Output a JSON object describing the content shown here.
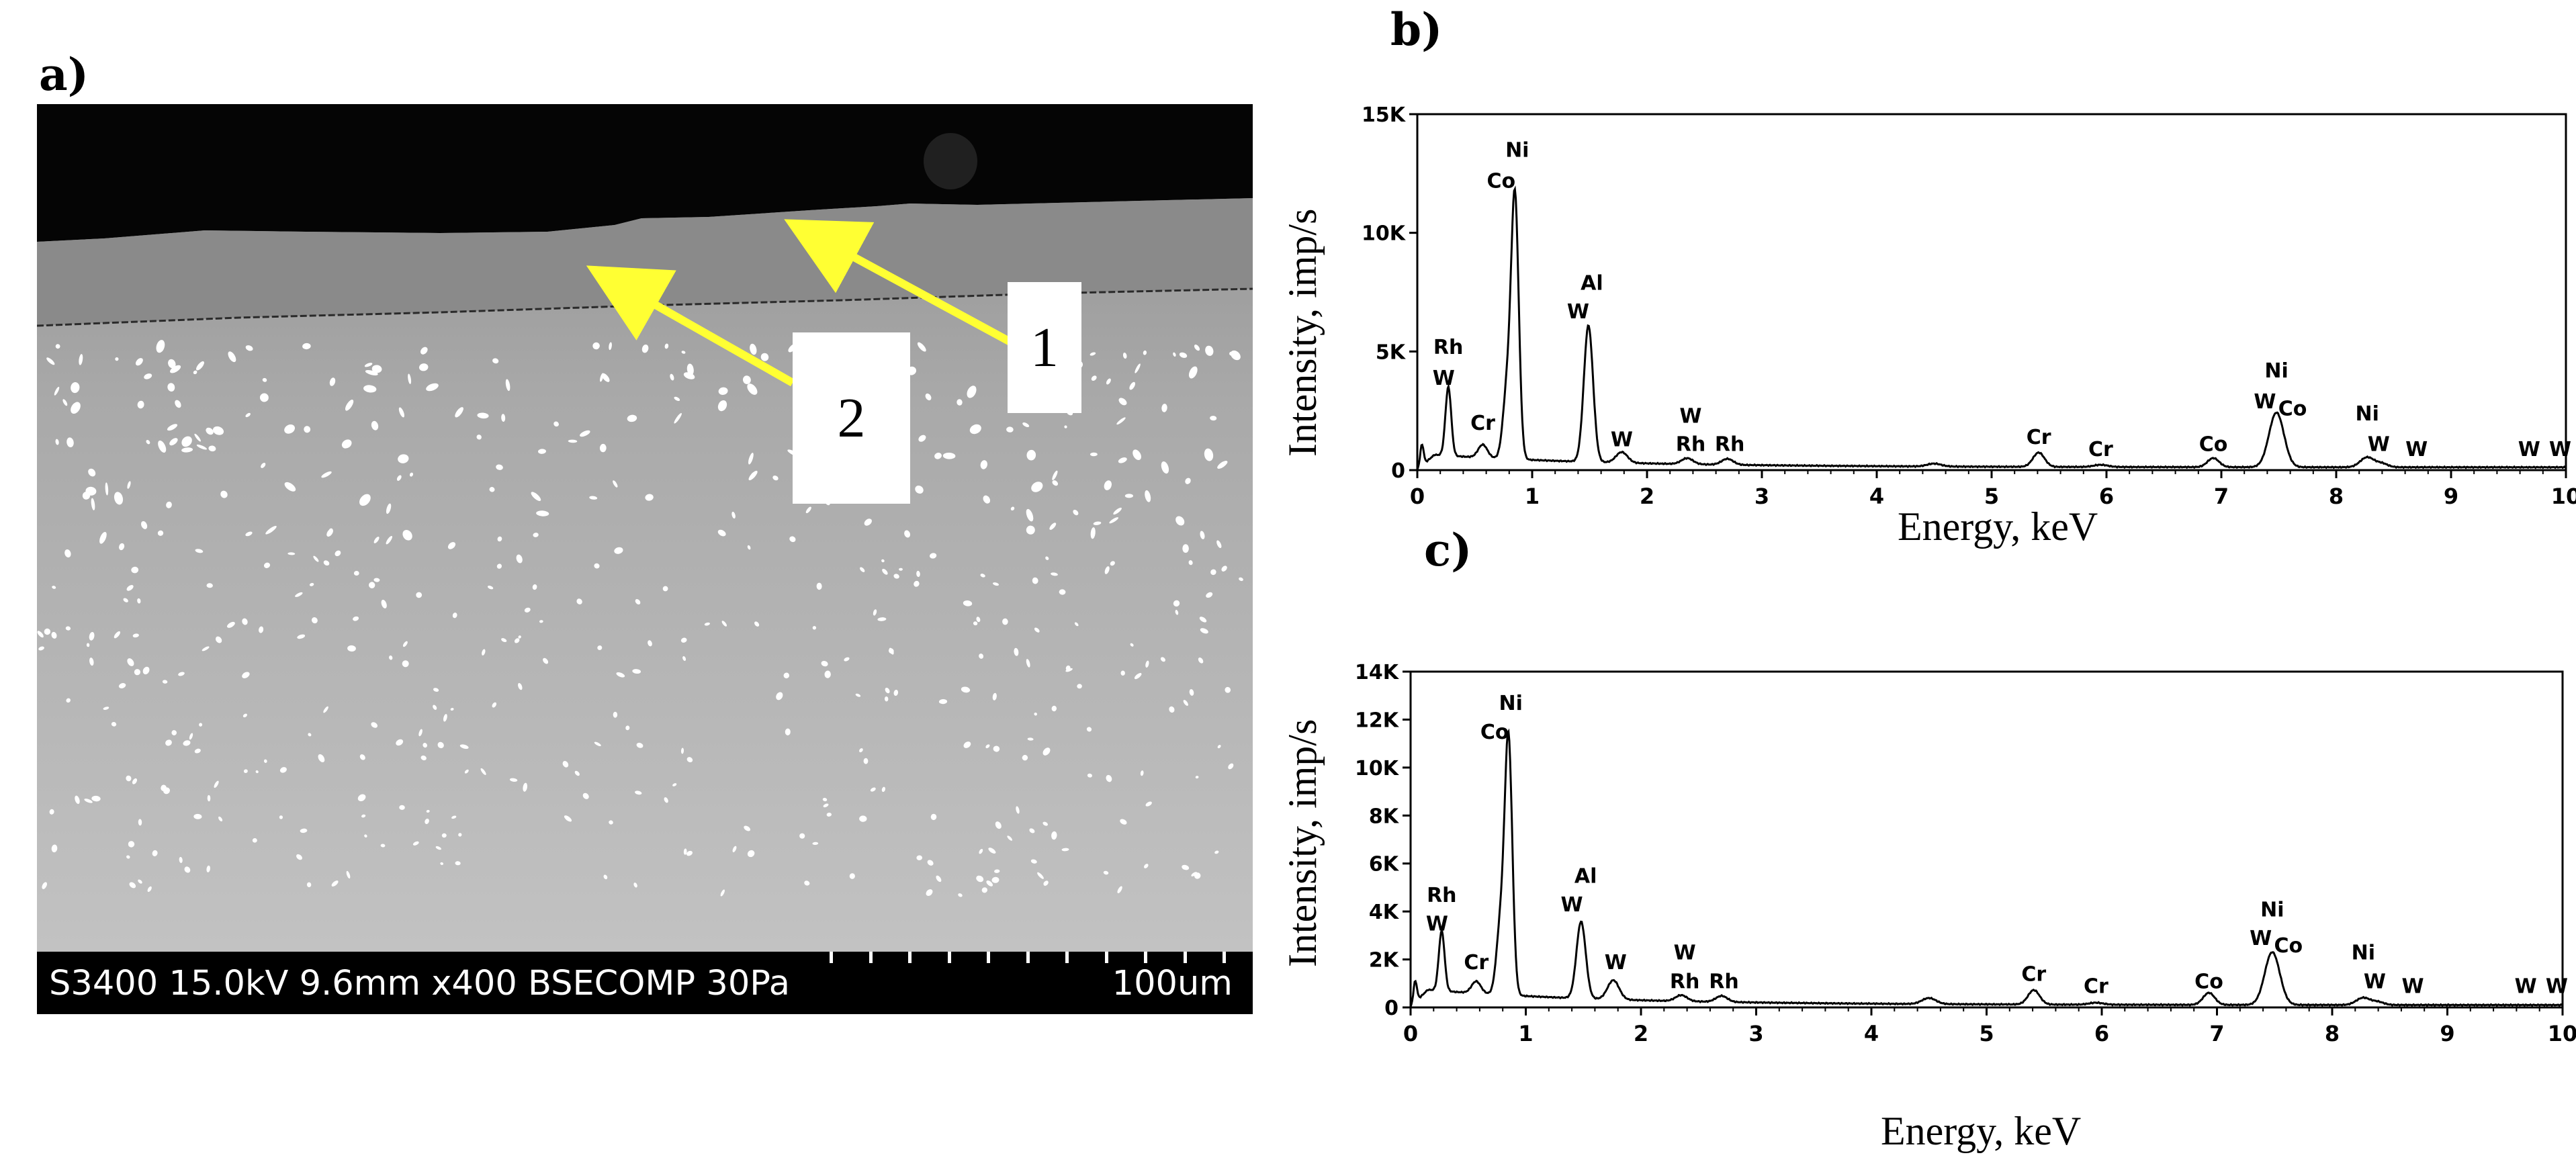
{
  "panel_labels": {
    "a": "a)",
    "b": "b)",
    "c": "c)"
  },
  "micrograph": {
    "caption": "S3400 15.0kV 9.6mm x400 BSECOMP 30Pa",
    "scale_bar_label": "100um",
    "markers": [
      "1",
      "2"
    ],
    "arrow_color": "#ffff33"
  },
  "chart_data": [
    {
      "type": "line",
      "xlabel": "Energy, keV",
      "ylabel": "Intensity, imp/s",
      "xlim": [
        0,
        10
      ],
      "ylim": [
        0,
        15000
      ],
      "xticks": [
        "0",
        "1",
        "2",
        "3",
        "4",
        "5",
        "6",
        "7",
        "8",
        "9",
        "10"
      ],
      "yticks": [
        {
          "value": 0,
          "label": "0"
        },
        {
          "value": 5000,
          "label": "5K"
        },
        {
          "value": 10000,
          "label": "10K"
        },
        {
          "value": 15000,
          "label": "15K"
        }
      ],
      "peaks": [
        {
          "x": 0.04,
          "y": 900,
          "w": 0.015
        },
        {
          "x": 0.27,
          "y": 2900,
          "w": 0.025
        },
        {
          "x": 0.57,
          "y": 550,
          "w": 0.04
        },
        {
          "x": 0.78,
          "y": 2800,
          "w": 0.035
        },
        {
          "x": 0.85,
          "y": 11000,
          "w": 0.033
        },
        {
          "x": 1.49,
          "y": 5750,
          "w": 0.04
        },
        {
          "x": 1.78,
          "y": 450,
          "w": 0.05
        },
        {
          "x": 2.35,
          "y": 250,
          "w": 0.05
        },
        {
          "x": 2.7,
          "y": 250,
          "w": 0.05
        },
        {
          "x": 4.5,
          "y": 120,
          "w": 0.06
        },
        {
          "x": 5.41,
          "y": 600,
          "w": 0.05
        },
        {
          "x": 5.95,
          "y": 90,
          "w": 0.06
        },
        {
          "x": 6.93,
          "y": 380,
          "w": 0.05
        },
        {
          "x": 7.48,
          "y": 2300,
          "w": 0.065
        },
        {
          "x": 8.27,
          "y": 420,
          "w": 0.06
        },
        {
          "x": 8.4,
          "y": 150,
          "w": 0.05
        }
      ],
      "background": {
        "start": 700,
        "end": 120
      },
      "annotations": [
        {
          "text": "Rh",
          "x": 0.27,
          "y": 4900
        },
        {
          "text": "W",
          "x": 0.23,
          "y": 3600
        },
        {
          "text": "Cr",
          "x": 0.57,
          "y": 1700
        },
        {
          "text": "Ni",
          "x": 0.87,
          "y": 13200
        },
        {
          "text": "Co",
          "x": 0.73,
          "y": 11900
        },
        {
          "text": "Al",
          "x": 1.52,
          "y": 7600
        },
        {
          "text": "W",
          "x": 1.4,
          "y": 6400
        },
        {
          "text": "W",
          "x": 1.78,
          "y": 1000
        },
        {
          "text": "W",
          "x": 2.38,
          "y": 2000
        },
        {
          "text": "Rh",
          "x": 2.38,
          "y": 800
        },
        {
          "text": "Rh",
          "x": 2.72,
          "y": 800
        },
        {
          "text": "Cr",
          "x": 5.41,
          "y": 1100
        },
        {
          "text": "Cr",
          "x": 5.95,
          "y": 600
        },
        {
          "text": "Co",
          "x": 6.93,
          "y": 800
        },
        {
          "text": "Ni",
          "x": 7.48,
          "y": 3900
        },
        {
          "text": "W",
          "x": 7.38,
          "y": 2600
        },
        {
          "text": "Co",
          "x": 7.62,
          "y": 2300
        },
        {
          "text": "Ni",
          "x": 8.27,
          "y": 2100
        },
        {
          "text": "W",
          "x": 8.37,
          "y": 800
        },
        {
          "text": "W",
          "x": 8.7,
          "y": 600
        },
        {
          "text": "W",
          "x": 9.68,
          "y": 600
        },
        {
          "text": "W",
          "x": 9.95,
          "y": 600
        }
      ]
    },
    {
      "type": "line",
      "xlabel": "Energy, keV",
      "ylabel": "Intensity, imp/s",
      "xlim": [
        0,
        10
      ],
      "ylim": [
        0,
        14000
      ],
      "xticks": [
        "0",
        "1",
        "2",
        "3",
        "4",
        "5",
        "6",
        "7",
        "8",
        "9",
        "10"
      ],
      "yticks": [
        {
          "value": 0,
          "label": "0"
        },
        {
          "value": 2000,
          "label": "2K"
        },
        {
          "value": 4000,
          "label": "4K"
        },
        {
          "value": 6000,
          "label": "6K"
        },
        {
          "value": 8000,
          "label": "8K"
        },
        {
          "value": 10000,
          "label": "10K"
        },
        {
          "value": 12000,
          "label": "12K"
        },
        {
          "value": 14000,
          "label": "14K"
        }
      ],
      "peaks": [
        {
          "x": 0.04,
          "y": 900,
          "w": 0.015
        },
        {
          "x": 0.27,
          "y": 2500,
          "w": 0.025
        },
        {
          "x": 0.57,
          "y": 500,
          "w": 0.04
        },
        {
          "x": 0.78,
          "y": 2800,
          "w": 0.035
        },
        {
          "x": 0.85,
          "y": 10600,
          "w": 0.033
        },
        {
          "x": 1.48,
          "y": 3200,
          "w": 0.04
        },
        {
          "x": 1.76,
          "y": 800,
          "w": 0.05
        },
        {
          "x": 2.35,
          "y": 250,
          "w": 0.05
        },
        {
          "x": 2.7,
          "y": 250,
          "w": 0.05
        },
        {
          "x": 4.5,
          "y": 250,
          "w": 0.06
        },
        {
          "x": 5.41,
          "y": 600,
          "w": 0.05
        },
        {
          "x": 5.95,
          "y": 80,
          "w": 0.06
        },
        {
          "x": 6.93,
          "y": 500,
          "w": 0.05
        },
        {
          "x": 7.48,
          "y": 2200,
          "w": 0.065
        },
        {
          "x": 8.27,
          "y": 300,
          "w": 0.06
        },
        {
          "x": 8.4,
          "y": 120,
          "w": 0.05
        }
      ],
      "background": {
        "start": 800,
        "end": 100
      },
      "annotations": [
        {
          "text": "Rh",
          "x": 0.27,
          "y": 4400
        },
        {
          "text": "W",
          "x": 0.23,
          "y": 3200
        },
        {
          "text": "Cr",
          "x": 0.57,
          "y": 1600
        },
        {
          "text": "Ni",
          "x": 0.87,
          "y": 12400
        },
        {
          "text": "Co",
          "x": 0.73,
          "y": 11200
        },
        {
          "text": "Al",
          "x": 1.52,
          "y": 5200
        },
        {
          "text": "W",
          "x": 1.4,
          "y": 4000
        },
        {
          "text": "W",
          "x": 1.78,
          "y": 1600
        },
        {
          "text": "W",
          "x": 2.38,
          "y": 2000
        },
        {
          "text": "Rh",
          "x": 2.38,
          "y": 800
        },
        {
          "text": "Rh",
          "x": 2.72,
          "y": 800
        },
        {
          "text": "Cr",
          "x": 5.41,
          "y": 1100
        },
        {
          "text": "Cr",
          "x": 5.95,
          "y": 600
        },
        {
          "text": "Co",
          "x": 6.93,
          "y": 800
        },
        {
          "text": "Ni",
          "x": 7.48,
          "y": 3800
        },
        {
          "text": "W",
          "x": 7.38,
          "y": 2600
        },
        {
          "text": "Co",
          "x": 7.62,
          "y": 2300
        },
        {
          "text": "Ni",
          "x": 8.27,
          "y": 2000
        },
        {
          "text": "W",
          "x": 8.37,
          "y": 800
        },
        {
          "text": "W",
          "x": 8.7,
          "y": 600
        },
        {
          "text": "W",
          "x": 9.68,
          "y": 600
        },
        {
          "text": "W",
          "x": 9.95,
          "y": 600
        }
      ]
    }
  ]
}
